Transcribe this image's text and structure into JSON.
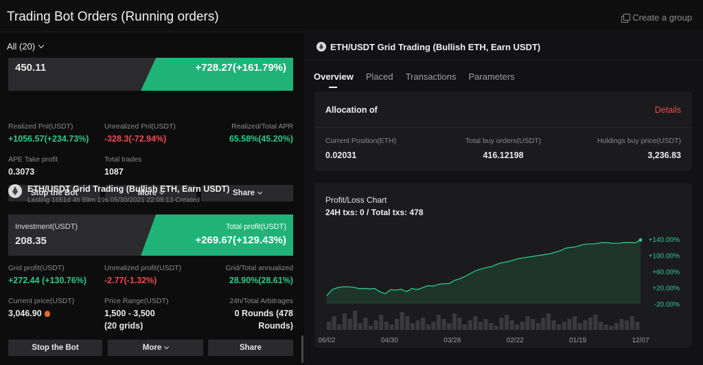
{
  "header": {
    "title": "Trading Bot Orders (Running orders)",
    "create_group": "Create a group"
  },
  "filter": {
    "label": "All (20)"
  },
  "card1": {
    "investment_value": "450.11",
    "total_profit_value": "+728.27(+161.79%)",
    "realized_pnl_label": "Realized Pnl(USDT)",
    "realized_pnl_value": "+1056.57(+234.73%)",
    "unrealized_pnl_label": "Unrealized Pnl(USDT)",
    "unrealized_pnl_value": "-328.3(-72.94%)",
    "apr_label": "Realized/Total APR",
    "apr_value": "65.58%(45.20%)",
    "take_profit_label": "APE Take profit",
    "take_profit_value": "0.3073",
    "total_trades_label": "Total trades",
    "total_trades_value": "1087",
    "buttons": {
      "stop": "Stop the Bot",
      "more": "More",
      "share": "Share"
    }
  },
  "card2": {
    "title": "ETH/USDT Grid Trading (Bullish ETH, Earn USDT)",
    "subtitle": "Lasting 1651d 4h 59m 19s 05/30/2021 22:08:13 Created",
    "investment_label": "Investment(USDT)",
    "investment_value": "208.35",
    "total_profit_label": "Total profit(USDT)",
    "total_profit_value": "+269.67(+129.43%)",
    "grid_profit_label": "Grid profit(USDT)",
    "grid_profit_value": "+272.44 (+130.76%)",
    "unrealized_label": "Unrealized profit(USDT)",
    "unrealized_value": "-2.77(-1.32%)",
    "annualized_label": "Grid/Total annualized",
    "annualized_value": "28.90%(28.61%)",
    "current_price_label": "Current price(USDT)",
    "current_price_value": "3,046.90",
    "range_label": "Price Range(USDT)",
    "range_value": "1,500 - 3,500",
    "range_grids": "(20 grids)",
    "arb_label": "24h/Total Arbitrages",
    "arb_value_line1": "0 Rounds (478",
    "arb_value_line2": "Rounds)",
    "buttons": {
      "stop": "Stop the Bot",
      "more": "More",
      "share": "Share"
    }
  },
  "detail": {
    "title": "ETH/USDT Grid Trading (Bullish ETH, Earn USDT)",
    "tabs": [
      "Overview",
      "Placed",
      "Transactions",
      "Parameters"
    ],
    "allocation": {
      "heading": "Allocation of",
      "details": "Details",
      "position_label": "Current Position(ETH)",
      "position_value": "0.02031",
      "buy_orders_label": "Total buy orders(USDT)",
      "buy_orders_value": "416.12198",
      "holdings_label": "Holdings buy price(USDT)",
      "holdings_value": "3,236.83"
    },
    "pl_chart": {
      "heading": "Profit/Loss Chart",
      "txs": "24H txs: 0 / Total txs: 478"
    }
  },
  "colors": {
    "green": "#2ec98c",
    "red": "#f0494f",
    "accent_green": "#1fb378"
  },
  "chart_data": {
    "type": "area",
    "x_ticks": [
      "06/02",
      "04/30",
      "03/28",
      "02/22",
      "01/19",
      "12/07"
    ],
    "y_ticks": [
      "+140.00%",
      "+100.00%",
      "+60.00%",
      "+20.00%",
      "-20.00%"
    ],
    "y_tick_values": [
      140,
      100,
      60,
      20,
      -20
    ],
    "ylim": [
      -20,
      140
    ],
    "series": [
      {
        "values": [
          0,
          15,
          20,
          22,
          22,
          21,
          18,
          18,
          17,
          18,
          10,
          5,
          15,
          14,
          16,
          10,
          18,
          15,
          20,
          25,
          24,
          28,
          30,
          30,
          38,
          42,
          48,
          55,
          62,
          66,
          70,
          72,
          78,
          82,
          84,
          88,
          92,
          94,
          96,
          98,
          100,
          102,
          104,
          108,
          112,
          118,
          120,
          122,
          126,
          128,
          128,
          130,
          132,
          131,
          130,
          130,
          132,
          132,
          131,
          138
        ]
      }
    ],
    "volume": [
      6,
      10,
      4,
      12,
      8,
      14,
      5,
      9,
      3,
      7,
      11,
      6,
      4,
      8,
      13,
      10,
      5,
      7,
      9,
      4,
      6,
      11,
      8,
      5,
      12,
      9,
      4,
      7,
      10,
      6,
      8,
      5,
      3,
      9,
      11,
      7,
      4,
      6,
      10,
      8,
      5,
      9,
      12,
      7,
      4,
      6,
      8,
      10,
      5,
      7,
      9,
      11,
      6,
      4,
      3,
      5,
      8,
      7,
      10,
      6
    ]
  }
}
